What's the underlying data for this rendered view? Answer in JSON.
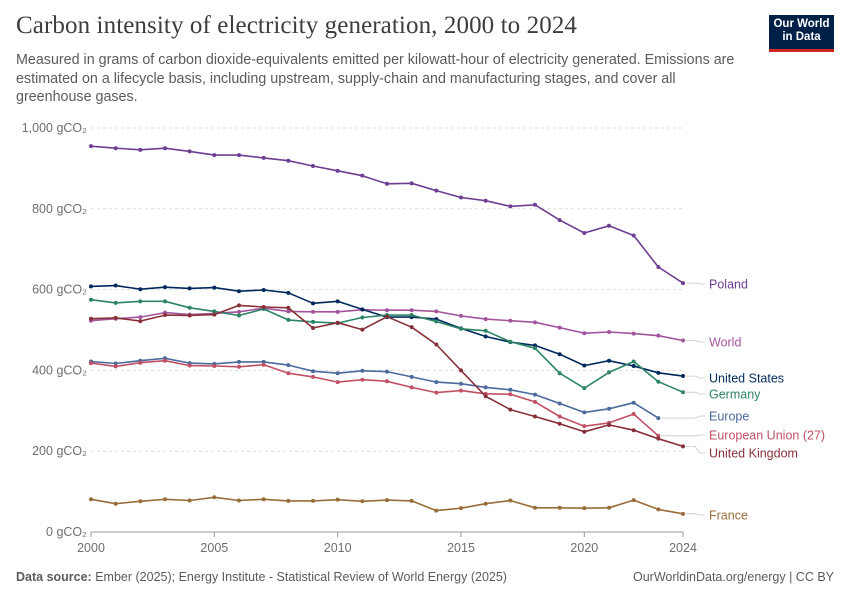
{
  "header": {
    "title": "Carbon intensity of electricity generation, 2000 to 2024",
    "subtitle": "Measured in grams of carbon dioxide-equivalents emitted per kilowatt-hour of electricity generated. Emissions are estimated on a lifecycle basis, including upstream, supply-chain and manufacturing stages, and cover all greenhouse gases.",
    "logo_line1": "Our World",
    "logo_line2": "in Data"
  },
  "footer": {
    "source_label": "Data source:",
    "source_text": "Ember (2025); Energy Institute - Statistical Review of World Energy (2025)",
    "right_text": "OurWorldinData.org/energy | CC BY"
  },
  "colors": {
    "logo_bg": "#002147",
    "logo_accent": "#ce261e"
  },
  "chart_data": {
    "type": "line",
    "ylim": [
      0,
      1000
    ],
    "xlim": [
      2000,
      2024
    ],
    "grid": true,
    "y_ticks": [
      {
        "value": 0,
        "label": "0 gCO₂"
      },
      {
        "value": 200,
        "label": "200 gCO₂"
      },
      {
        "value": 400,
        "label": "400 gCO₂"
      },
      {
        "value": 600,
        "label": "600 gCO₂"
      },
      {
        "value": 800,
        "label": "800 gCO₂"
      },
      {
        "value": 1000,
        "label": "1,000 gCO₂"
      }
    ],
    "x_ticks": [
      {
        "value": 2000,
        "label": "2000"
      },
      {
        "value": 2005,
        "label": "2005"
      },
      {
        "value": 2010,
        "label": "2010"
      },
      {
        "value": 2015,
        "label": "2015"
      },
      {
        "value": 2020,
        "label": "2020"
      },
      {
        "value": 2024,
        "label": "2024"
      }
    ],
    "series": [
      {
        "name": "Poland",
        "color": "#6d3e91",
        "x": [
          2000,
          2001,
          2002,
          2003,
          2004,
          2005,
          2006,
          2007,
          2008,
          2009,
          2010,
          2011,
          2012,
          2013,
          2014,
          2015,
          2016,
          2017,
          2018,
          2019,
          2020,
          2021,
          2022,
          2023,
          2024
        ],
        "values": [
          955,
          950,
          946,
          950,
          942,
          933,
          933,
          926,
          919,
          906,
          894,
          882,
          862,
          863,
          845,
          828,
          820,
          806,
          810,
          772,
          740,
          758,
          734,
          656,
          616
        ]
      },
      {
        "name": "World",
        "color": "#a2559c",
        "x": [
          2000,
          2001,
          2002,
          2003,
          2004,
          2005,
          2006,
          2007,
          2008,
          2009,
          2010,
          2011,
          2012,
          2013,
          2014,
          2015,
          2016,
          2017,
          2018,
          2019,
          2020,
          2021,
          2022,
          2023,
          2024
        ],
        "values": [
          523,
          528,
          532,
          543,
          538,
          541,
          545,
          554,
          546,
          545,
          545,
          550,
          549,
          549,
          546,
          535,
          527,
          523,
          519,
          506,
          492,
          495,
          491,
          486,
          474
        ]
      },
      {
        "name": "United States",
        "color": "#00295b",
        "x": [
          2000,
          2001,
          2002,
          2003,
          2004,
          2005,
          2006,
          2007,
          2008,
          2009,
          2010,
          2011,
          2012,
          2013,
          2014,
          2015,
          2016,
          2017,
          2018,
          2019,
          2020,
          2021,
          2022,
          2023,
          2024
        ],
        "values": [
          608,
          610,
          601,
          606,
          603,
          605,
          596,
          599,
          592,
          566,
          571,
          551,
          532,
          532,
          527,
          504,
          484,
          470,
          462,
          440,
          412,
          424,
          411,
          394,
          386
        ]
      },
      {
        "name": "Germany",
        "color": "#2c8465",
        "x": [
          2000,
          2001,
          2002,
          2003,
          2004,
          2005,
          2006,
          2007,
          2008,
          2009,
          2010,
          2011,
          2012,
          2013,
          2014,
          2015,
          2016,
          2017,
          2018,
          2019,
          2020,
          2021,
          2022,
          2023,
          2024
        ],
        "values": [
          575,
          567,
          571,
          571,
          555,
          546,
          536,
          552,
          525,
          520,
          517,
          531,
          537,
          537,
          521,
          503,
          498,
          471,
          455,
          393,
          356,
          395,
          422,
          372,
          346
        ]
      },
      {
        "name": "Europe",
        "color": "#4c6a9c",
        "x": [
          2000,
          2001,
          2002,
          2003,
          2004,
          2005,
          2006,
          2007,
          2008,
          2009,
          2010,
          2011,
          2012,
          2013,
          2014,
          2015,
          2016,
          2017,
          2018,
          2019,
          2020,
          2021,
          2022,
          2023
        ],
        "values": [
          422,
          417,
          424,
          430,
          418,
          416,
          421,
          421,
          413,
          398,
          393,
          399,
          397,
          384,
          371,
          367,
          358,
          352,
          340,
          318,
          296,
          305,
          320,
          282
        ]
      },
      {
        "name": "European Union (27)",
        "color": "#c15065",
        "x": [
          2000,
          2001,
          2002,
          2003,
          2004,
          2005,
          2006,
          2007,
          2008,
          2009,
          2010,
          2011,
          2012,
          2013,
          2014,
          2015,
          2016,
          2017,
          2018,
          2019,
          2020,
          2021,
          2022,
          2023
        ],
        "values": [
          418,
          410,
          419,
          424,
          412,
          411,
          409,
          414,
          393,
          384,
          371,
          377,
          373,
          358,
          345,
          350,
          342,
          341,
          322,
          286,
          262,
          270,
          292,
          238
        ]
      },
      {
        "name": "United Kingdom",
        "color": "#883039",
        "x": [
          2000,
          2001,
          2002,
          2003,
          2004,
          2005,
          2006,
          2007,
          2008,
          2009,
          2010,
          2011,
          2012,
          2013,
          2014,
          2015,
          2016,
          2017,
          2018,
          2019,
          2020,
          2021,
          2022,
          2023,
          2024
        ],
        "values": [
          528,
          530,
          522,
          537,
          536,
          538,
          561,
          557,
          555,
          505,
          518,
          501,
          533,
          507,
          464,
          400,
          336,
          303,
          286,
          268,
          248,
          265,
          252,
          231,
          212
        ]
      },
      {
        "name": "France",
        "color": "#996d39",
        "x": [
          2000,
          2001,
          2002,
          2003,
          2004,
          2005,
          2006,
          2007,
          2008,
          2009,
          2010,
          2011,
          2012,
          2013,
          2014,
          2015,
          2016,
          2017,
          2018,
          2019,
          2020,
          2021,
          2022,
          2023,
          2024
        ],
        "values": [
          81,
          70,
          76,
          81,
          78,
          86,
          78,
          81,
          77,
          77,
          80,
          76,
          79,
          77,
          53,
          59,
          70,
          78,
          60,
          60,
          59,
          60,
          79,
          56,
          45
        ]
      }
    ]
  }
}
